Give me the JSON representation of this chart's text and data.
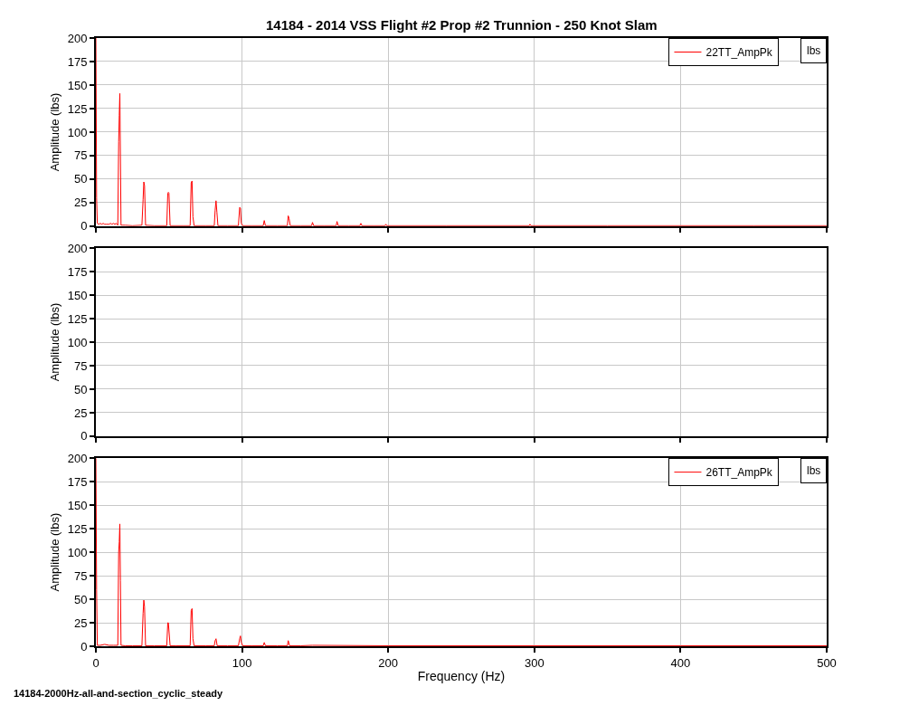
{
  "chart_data": [
    {
      "type": "line",
      "title": "14184 - 2014 VSS Flight #2 Prop #2 Trunnion - 250 Knot Slam",
      "ylabel": "Amplitude (lbs)",
      "annotations": [
        "lbs"
      ],
      "series": [
        {
          "name": "22TT_AmpPk",
          "color": "#ff0000",
          "x": [
            0,
            0.5,
            1,
            2,
            3,
            4,
            5,
            6,
            7,
            8,
            9,
            10,
            11,
            12,
            13,
            14,
            15,
            15.6,
            16,
            16.4,
            16.8,
            17.2,
            18,
            20,
            25,
            31.5,
            32.3,
            32.8,
            33.3,
            34,
            40,
            48.5,
            49.2,
            49.6,
            50,
            50.8,
            60,
            64.5,
            65.2,
            65.8,
            66.4,
            67.2,
            75,
            81,
            81.6,
            82.2,
            82.8,
            83.5,
            90,
            97.5,
            98.4,
            98.9,
            99.5,
            100.5,
            107,
            114.5,
            115.2,
            116,
            124,
            131,
            131.6,
            132.2,
            133,
            140,
            147.6,
            148.2,
            149,
            156,
            164.4,
            165,
            165.8,
            173,
            180.6,
            181.3,
            182,
            190,
            197.8,
            198.4,
            199,
            240,
            296.5,
            297,
            297.6,
            350,
            400,
            450,
            500
          ],
          "values": [
            200,
            30,
            3,
            2,
            3,
            2,
            3,
            2,
            2,
            2,
            2,
            3,
            2,
            3,
            2,
            3,
            1,
            90,
            118,
            141,
            75,
            1,
            1,
            1,
            0.5,
            1,
            28,
            47,
            43,
            1,
            0.5,
            0.5,
            35,
            36,
            35,
            0.5,
            0.5,
            0.5,
            46,
            48,
            10,
            0.5,
            0.5,
            0.5,
            17,
            27,
            15,
            0.5,
            0.5,
            0.5,
            20,
            19,
            3,
            0.5,
            0.5,
            0.5,
            6,
            0.5,
            0.5,
            0.5,
            11,
            8,
            0.5,
            0.5,
            0.5,
            4,
            0.5,
            0.5,
            0.5,
            5,
            0.5,
            0.5,
            0.5,
            3,
            0.5,
            0.5,
            0.5,
            2,
            0.5,
            0.5,
            0.5,
            2,
            0.5,
            0.5,
            0.5,
            0.5,
            0.5
          ]
        }
      ],
      "xlim": [
        0,
        500
      ],
      "xticks": [
        0,
        100,
        200,
        300,
        400,
        500
      ],
      "ylim": [
        0,
        200
      ],
      "yticks": [
        0,
        25,
        50,
        75,
        100,
        125,
        150,
        175,
        200
      ],
      "grid": true,
      "legend": "top right",
      "tick_labels": "y"
    },
    {
      "type": "line",
      "ylabel": "Amplitude (lbs)",
      "xlim": [
        0,
        500
      ],
      "xticks": [
        0,
        100,
        200,
        300,
        400,
        500
      ],
      "ylim": [
        0,
        200
      ],
      "yticks": [
        0,
        25,
        50,
        75,
        100,
        125,
        150,
        175,
        200
      ],
      "grid": true,
      "tick_labels": "y"
    },
    {
      "type": "line",
      "xlabel": "Frequency (Hz)",
      "ylabel": "Amplitude (lbs)",
      "annotations": [
        "lbs",
        "14184-2000Hz-all-and-section_cyclic_steady"
      ],
      "series": [
        {
          "name": "26TT_AmpPk",
          "color": "#ff0000",
          "x": [
            0,
            0.5,
            1,
            3,
            6,
            9,
            12,
            15,
            15.6,
            16,
            16.4,
            16.8,
            17.2,
            20,
            25,
            31.5,
            32.3,
            32.8,
            33.3,
            34,
            40,
            48.5,
            49.2,
            49.6,
            50.8,
            55,
            64.5,
            65.2,
            65.8,
            66.4,
            67.2,
            75,
            81,
            81.6,
            82.2,
            83,
            90,
            97.5,
            98.4,
            98.9,
            99.5,
            100.5,
            107,
            114.5,
            115.2,
            116,
            124,
            131,
            131.6,
            132.5,
            140,
            148.2,
            200,
            300,
            400,
            500
          ],
          "values": [
            200,
            60,
            1,
            1,
            2,
            1,
            1,
            1,
            100,
            111,
            130,
            70,
            1,
            0.5,
            0.5,
            0.5,
            35,
            49,
            42,
            0.5,
            0.5,
            0.5,
            25,
            25,
            0.5,
            0.5,
            0.5,
            38,
            40,
            8,
            0.5,
            0.5,
            0.5,
            6,
            8,
            0.5,
            0.5,
            0.5,
            8,
            11,
            4,
            0.5,
            0.5,
            0.5,
            4,
            0.5,
            0.5,
            0.5,
            6,
            0.5,
            0.5,
            1,
            0.5,
            0.5,
            0.5,
            0.5
          ]
        }
      ],
      "xlim": [
        0,
        500
      ],
      "xticks": [
        0,
        100,
        200,
        300,
        400,
        500
      ],
      "ylim": [
        0,
        200
      ],
      "yticks": [
        0,
        25,
        50,
        75,
        100,
        125,
        150,
        175,
        200
      ],
      "grid": true,
      "legend": "top right"
    }
  ]
}
